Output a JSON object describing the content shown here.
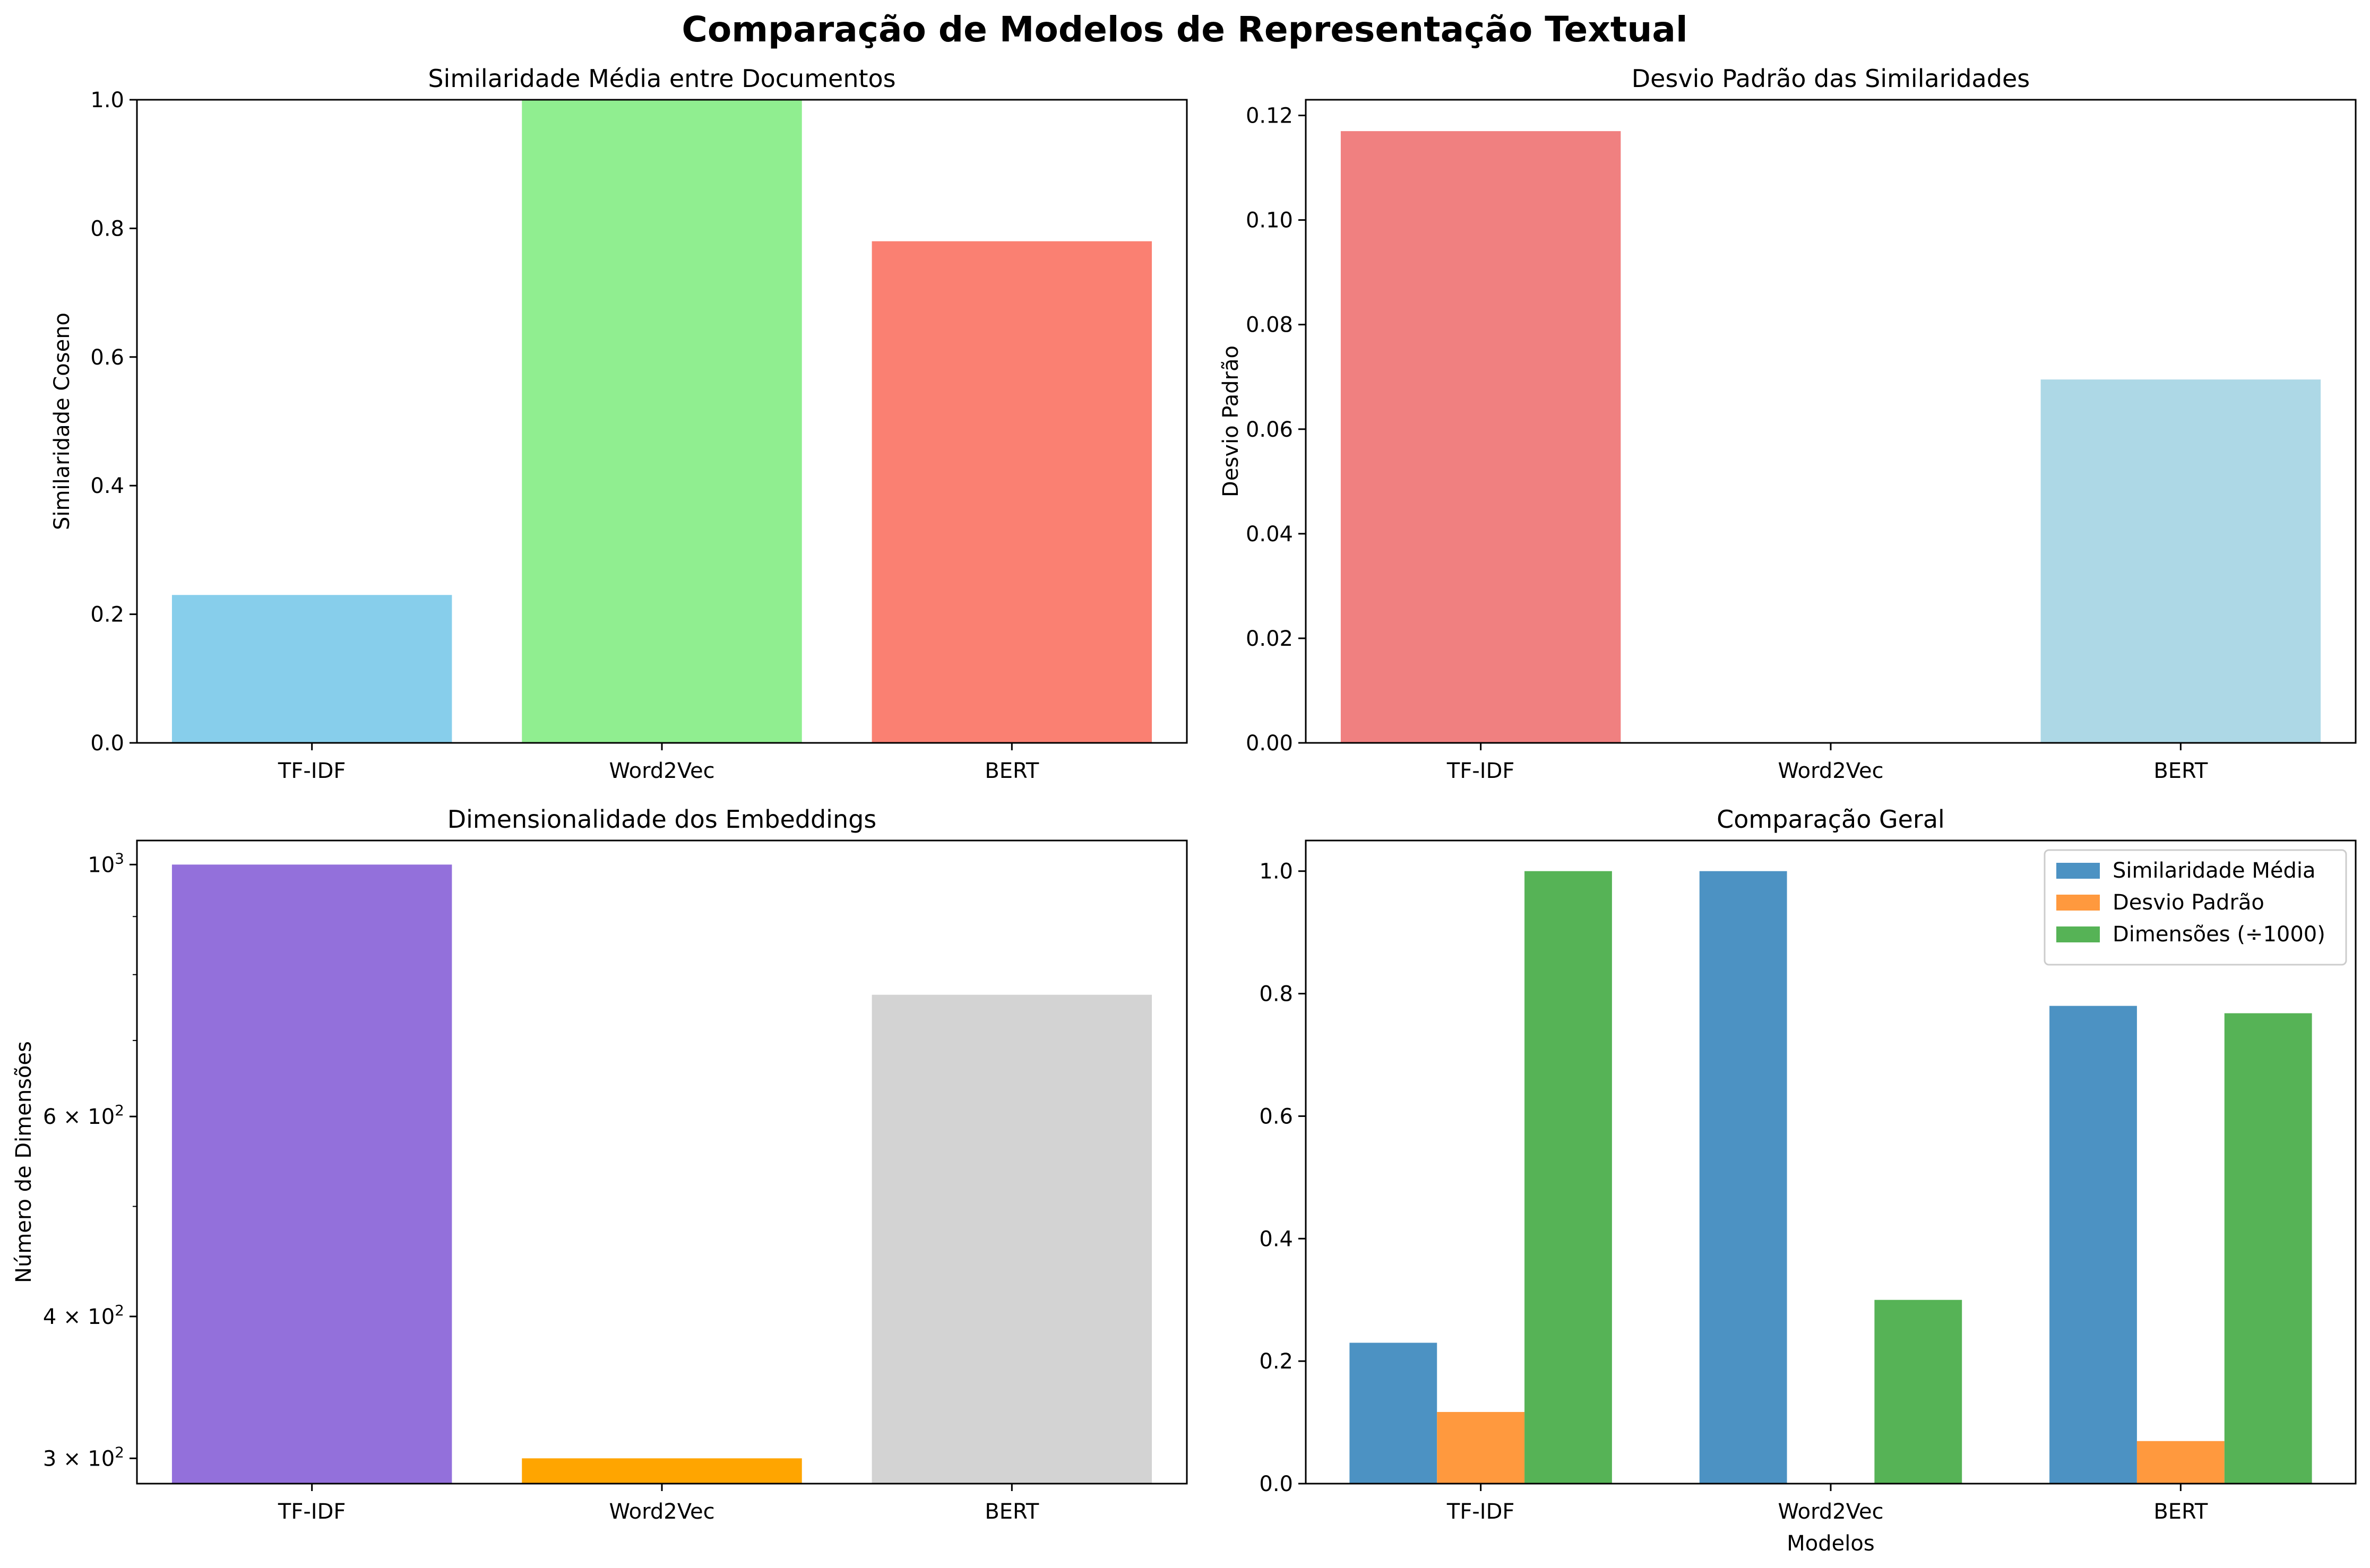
{
  "figure": {
    "suptitle": "Comparação de Modelos de Representação Textual"
  },
  "chart_data": [
    {
      "type": "bar",
      "title": "Similaridade Média entre Documentos",
      "xlabel": "",
      "ylabel": "Similaridade Coseno",
      "categories": [
        "TF-IDF",
        "Word2Vec",
        "BERT"
      ],
      "values": [
        0.23,
        1.0,
        0.78
      ],
      "colors": [
        "#87ceeb",
        "#90ee90",
        "#fa8072"
      ],
      "ylim": [
        0,
        1.0
      ],
      "yticks": [
        "0.0",
        "0.2",
        "0.4",
        "0.6",
        "0.8",
        "1.0"
      ],
      "scale": "linear",
      "grid": false
    },
    {
      "type": "bar",
      "title": "Desvio Padrão das Similaridades",
      "xlabel": "",
      "ylabel": "Desvio Padrão",
      "categories": [
        "TF-IDF",
        "Word2Vec",
        "BERT"
      ],
      "values": [
        0.117,
        0.0,
        0.0695
      ],
      "colors": [
        "#f08080",
        "#ffffff",
        "#add8e6"
      ],
      "ylim": [
        0,
        0.123
      ],
      "yticks": [
        "0.00",
        "0.02",
        "0.04",
        "0.06",
        "0.08",
        "0.10",
        "0.12"
      ],
      "scale": "linear",
      "grid": false
    },
    {
      "type": "bar",
      "title": "Dimensionalidade dos Embeddings",
      "xlabel": "",
      "ylabel": "Número de Dimensões",
      "categories": [
        "TF-IDF",
        "Word2Vec",
        "BERT"
      ],
      "values": [
        1000,
        300,
        768
      ],
      "colors": [
        "#9370db",
        "#ffa500",
        "#d3d3d3"
      ],
      "ylim": [
        285,
        1050
      ],
      "scale": "log",
      "yticks": [
        {
          "value": 300,
          "base": "3 × 10",
          "exp": "2"
        },
        {
          "value": 400,
          "base": "4 × 10",
          "exp": "2"
        },
        {
          "value": 600,
          "base": "6 × 10",
          "exp": "2"
        },
        {
          "value": 1000,
          "base": "10",
          "exp": "3"
        }
      ],
      "grid": false
    },
    {
      "type": "bar",
      "title": "Comparação Geral",
      "xlabel": "Modelos",
      "ylabel": "",
      "categories": [
        "TF-IDF",
        "Word2Vec",
        "BERT"
      ],
      "series": [
        {
          "name": "Similaridade Média",
          "values": [
            0.23,
            1.0,
            0.78
          ],
          "color": "#4c92c3"
        },
        {
          "name": "Desvio Padrão",
          "values": [
            0.117,
            0.0,
            0.0695
          ],
          "color": "#ff993e"
        },
        {
          "name": "Dimensões (÷1000)",
          "values": [
            1.0,
            0.3,
            0.768
          ],
          "color": "#56b356"
        }
      ],
      "ylim": [
        0,
        1.05
      ],
      "yticks": [
        "0.0",
        "0.2",
        "0.4",
        "0.6",
        "0.8",
        "1.0"
      ],
      "scale": "linear",
      "legend": "top-right",
      "grid": false
    }
  ]
}
